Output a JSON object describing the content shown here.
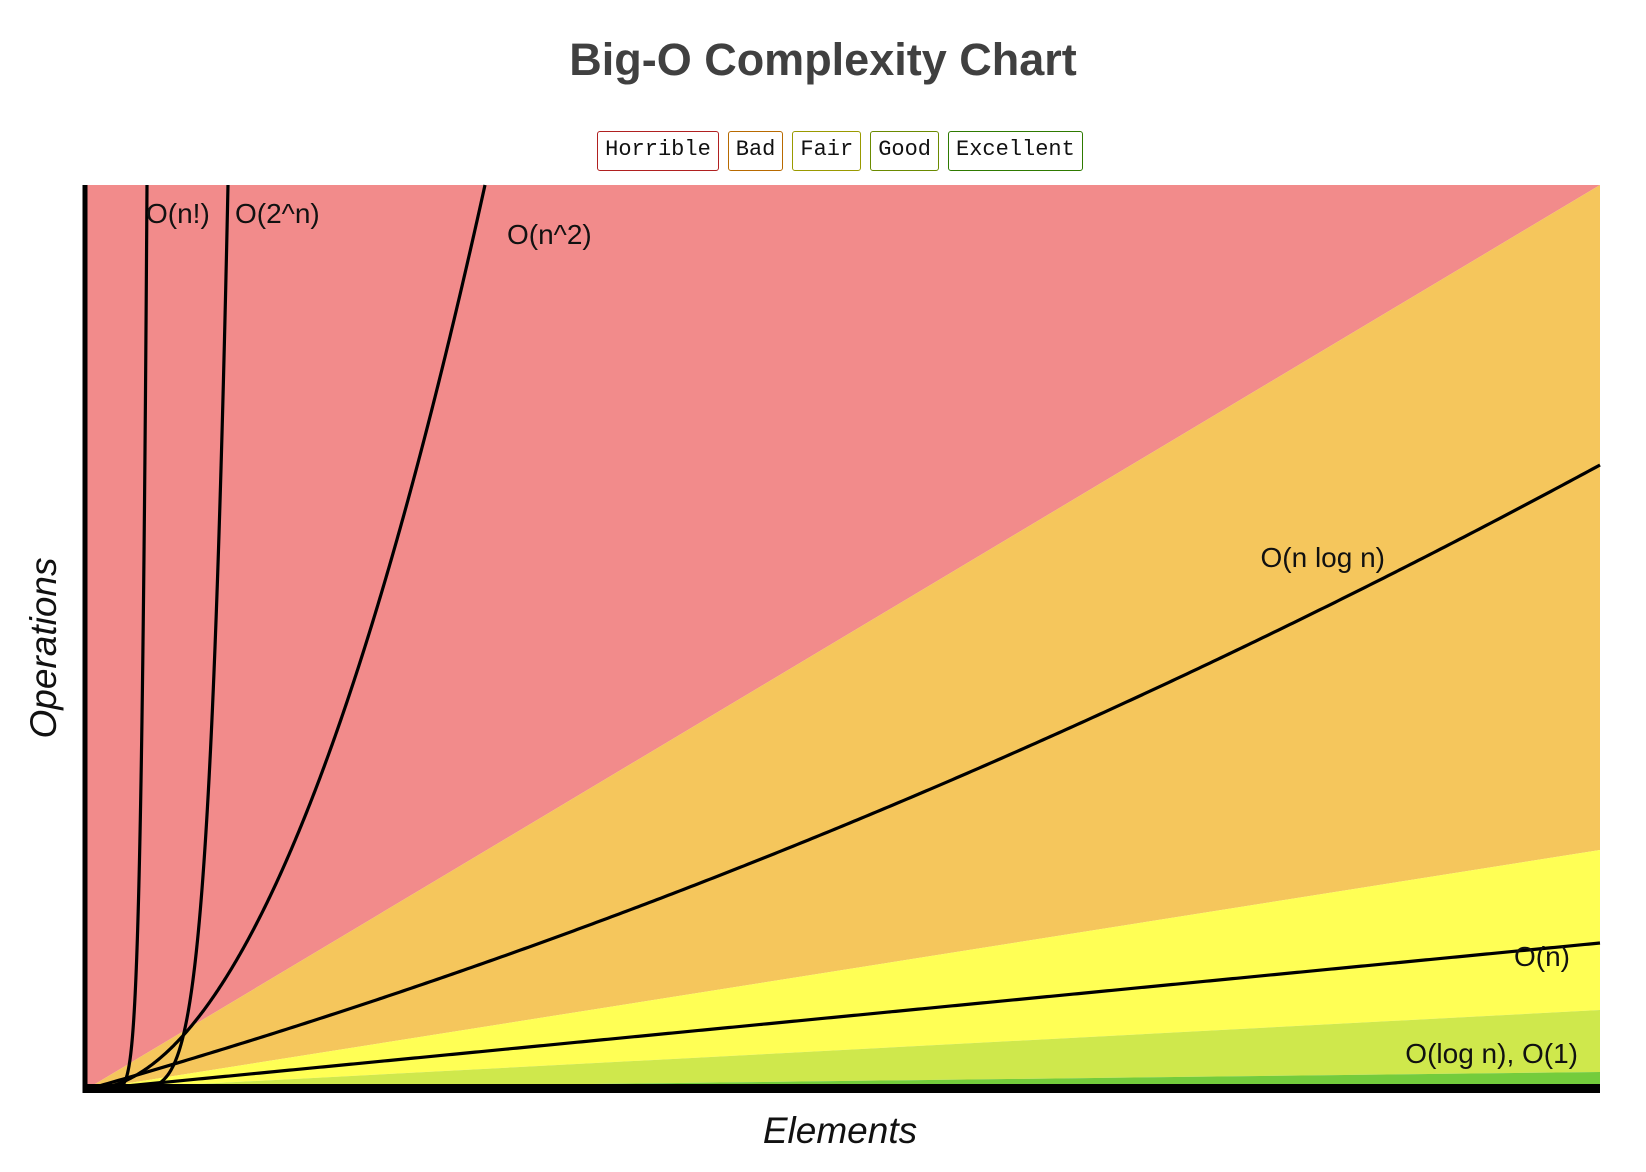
{
  "chart_data": {
    "type": "line",
    "title": "Big-O Complexity Chart",
    "xlabel": "Elements",
    "ylabel": "Operations",
    "legend": {
      "placement": "top-center",
      "items": [
        {
          "label": "Horrible",
          "color": "#f28b8b"
        },
        {
          "label": "Bad",
          "color": "#f5c65c"
        },
        {
          "label": "Fair",
          "color": "#ffff55"
        },
        {
          "label": "Good",
          "color": "#cfe84c"
        },
        {
          "label": "Excellent",
          "color": "#74cc3c"
        }
      ]
    },
    "regions": [
      {
        "name": "Horrible",
        "color": "#f28b8b"
      },
      {
        "name": "Bad",
        "color": "#f5c65c"
      },
      {
        "name": "Fair",
        "color": "#ffff55"
      },
      {
        "name": "Good",
        "color": "#cfe84c"
      },
      {
        "name": "Excellent",
        "color": "#74cc3c"
      }
    ],
    "series": [
      {
        "name": "O(n!)",
        "function": "factorial"
      },
      {
        "name": "O(2^n)",
        "function": "exponential"
      },
      {
        "name": "O(n^2)",
        "function": "quadratic"
      },
      {
        "name": "O(n log n)",
        "function": "linearithmic"
      },
      {
        "name": "O(n)",
        "function": "linear"
      },
      {
        "name": "O(log n), O(1)",
        "function": "logarithmic-constant"
      }
    ],
    "grid": false,
    "tick_labels": false
  }
}
